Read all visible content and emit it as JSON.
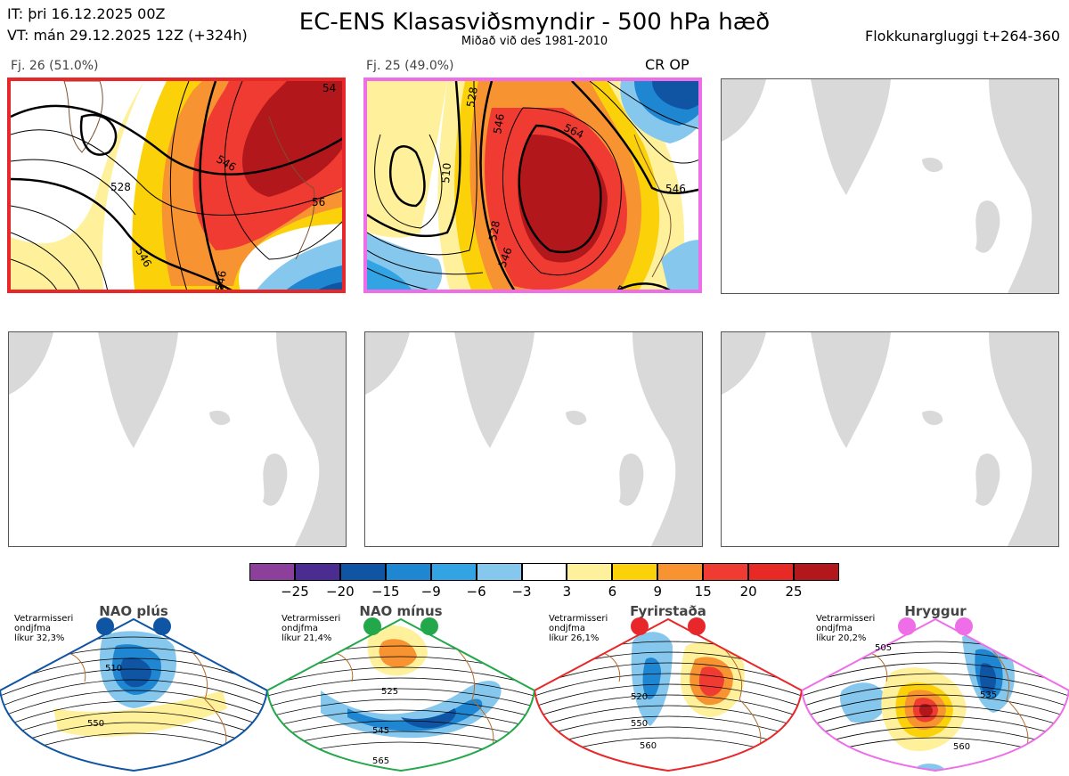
{
  "header": {
    "init_time": "IT: þri 16.12.2025 00Z",
    "valid_time": "VT: mán 29.12.2025 12Z  (+324h)",
    "title": "EC-ENS Klasasviðsmyndir - 500 hPa hæð",
    "subtitle": "Miðað við des 1981-2010",
    "window": "Flokkunargluggi t+264-360"
  },
  "clusters": [
    {
      "label": "Fj. 26 (51.0%)",
      "highlight": "#e8272a",
      "contours": [
        "528",
        "546",
        "546",
        "546",
        "56",
        "54"
      ]
    },
    {
      "label": "Fj. 25 (49.0%)",
      "highlight": "#ee6ee8",
      "tag": "CR OP",
      "contours": [
        "528",
        "546",
        "564",
        "510",
        "528",
        "546",
        "546",
        "546"
      ]
    }
  ],
  "colorbar": {
    "colors": [
      "#8c3f9b",
      "#4b2c91",
      "#0f55a3",
      "#1f86d1",
      "#33a4e3",
      "#86c7ee",
      "#ffffff",
      "#fff19b",
      "#fbd20a",
      "#f79331",
      "#ef3b31",
      "#e72a26",
      "#b1171b"
    ],
    "labels": [
      "−25",
      "−20",
      "−15",
      "−9",
      "−6",
      "−3",
      "3",
      "6",
      "9",
      "15",
      "20",
      "25"
    ]
  },
  "regimes": [
    {
      "name": "NAO plús",
      "note_lines": [
        "Vetrarmisseri",
        "ondjfma",
        "líkur 32,3%"
      ],
      "color": "#0f55a3",
      "contours": [
        "510",
        "550"
      ]
    },
    {
      "name": "NAO mínus",
      "note_lines": [
        "Vetrarmisseri",
        "ondjfma",
        "líkur 21,4%"
      ],
      "color": "#22a84a",
      "contours": [
        "525",
        "545",
        "565"
      ]
    },
    {
      "name": "Fyrirstaða",
      "note_lines": [
        "Vetrarmisseri",
        "ondjfma",
        "líkur 26,1%"
      ],
      "color": "#e8272a",
      "contours": [
        "520",
        "550",
        "560"
      ]
    },
    {
      "name": "Hryggur",
      "note_lines": [
        "Vetrarmisseri",
        "ondjfma",
        "líkur 20,2%"
      ],
      "color": "#ee6ee8",
      "contours": [
        "505",
        "535",
        "560"
      ]
    }
  ],
  "chart_data": {
    "type": "heatmap",
    "title": "EC-ENS Klasasviðsmyndir - 500 hPa hæð",
    "subtitle": "Miðað við des 1981-2010",
    "variable": "500 hPa height anomaly (dam) with contours",
    "colorbar_levels": [
      -25,
      -20,
      -15,
      -9,
      -6,
      -3,
      3,
      6,
      9,
      15,
      20,
      25
    ],
    "clusters": [
      {
        "name": "Fj. 26",
        "probability_pct": 51.0,
        "contour_values": [
          528,
          546,
          546,
          546,
          56,
          54
        ]
      },
      {
        "name": "Fj. 25",
        "probability_pct": 49.0,
        "contour_values": [
          528,
          546,
          564,
          510,
          528,
          546,
          546,
          546
        ],
        "tag": "CR OP"
      }
    ],
    "regimes": [
      {
        "name": "NAO plús",
        "likelihood_pct": 32.3
      },
      {
        "name": "NAO mínus",
        "likelihood_pct": 21.4
      },
      {
        "name": "Fyrirstaða",
        "likelihood_pct": 26.1
      },
      {
        "name": "Hryggur",
        "likelihood_pct": 20.2
      }
    ]
  }
}
